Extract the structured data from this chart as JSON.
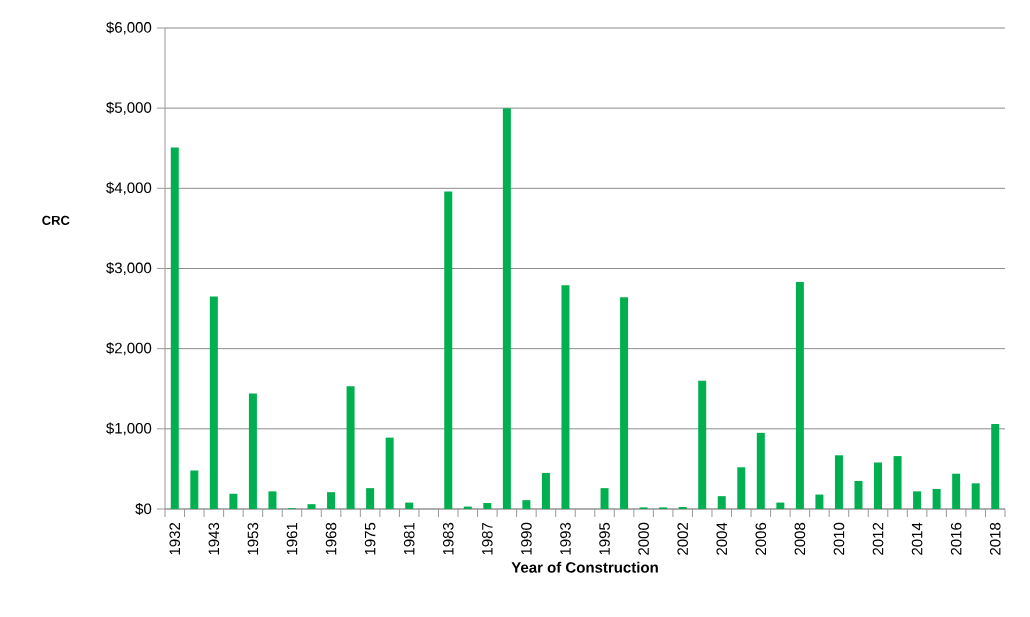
{
  "chart_data": {
    "type": "bar",
    "xlabel": "Year of Construction",
    "ylabel": "CRC",
    "categories": [
      "1932",
      null,
      "1943",
      null,
      "1953",
      null,
      "1961",
      null,
      "1968",
      null,
      "1975",
      null,
      "1981",
      null,
      "1983",
      null,
      "1987",
      null,
      "1990",
      null,
      "1993",
      null,
      "1995",
      null,
      "2000",
      null,
      "2002",
      null,
      "2004",
      null,
      "2006",
      null,
      "2008",
      null,
      "2010",
      null,
      "2012",
      null,
      "2014",
      null,
      "2016",
      null,
      "2018"
    ],
    "values": [
      4510,
      480,
      2650,
      190,
      1440,
      220,
      10,
      60,
      210,
      1530,
      260,
      890,
      80,
      0,
      3960,
      30,
      75,
      5000,
      110,
      450,
      2790,
      0,
      260,
      2640,
      20,
      20,
      25,
      1600,
      160,
      520,
      950,
      80,
      2830,
      180,
      670,
      350,
      580,
      660,
      220,
      250,
      440,
      320,
      1060
    ],
    "color": "#00b050",
    "ylim": [
      0,
      6000
    ],
    "yticks": [
      {
        "value": 0,
        "label": "$0"
      },
      {
        "value": 1000,
        "label": "$1,000"
      },
      {
        "value": 2000,
        "label": "$2,000"
      },
      {
        "value": 3000,
        "label": "$3,000"
      },
      {
        "value": 4000,
        "label": "$4,000"
      },
      {
        "value": 5000,
        "label": "$5,000"
      },
      {
        "value": 6000,
        "label": "$6,000"
      }
    ],
    "grid": "y"
  }
}
